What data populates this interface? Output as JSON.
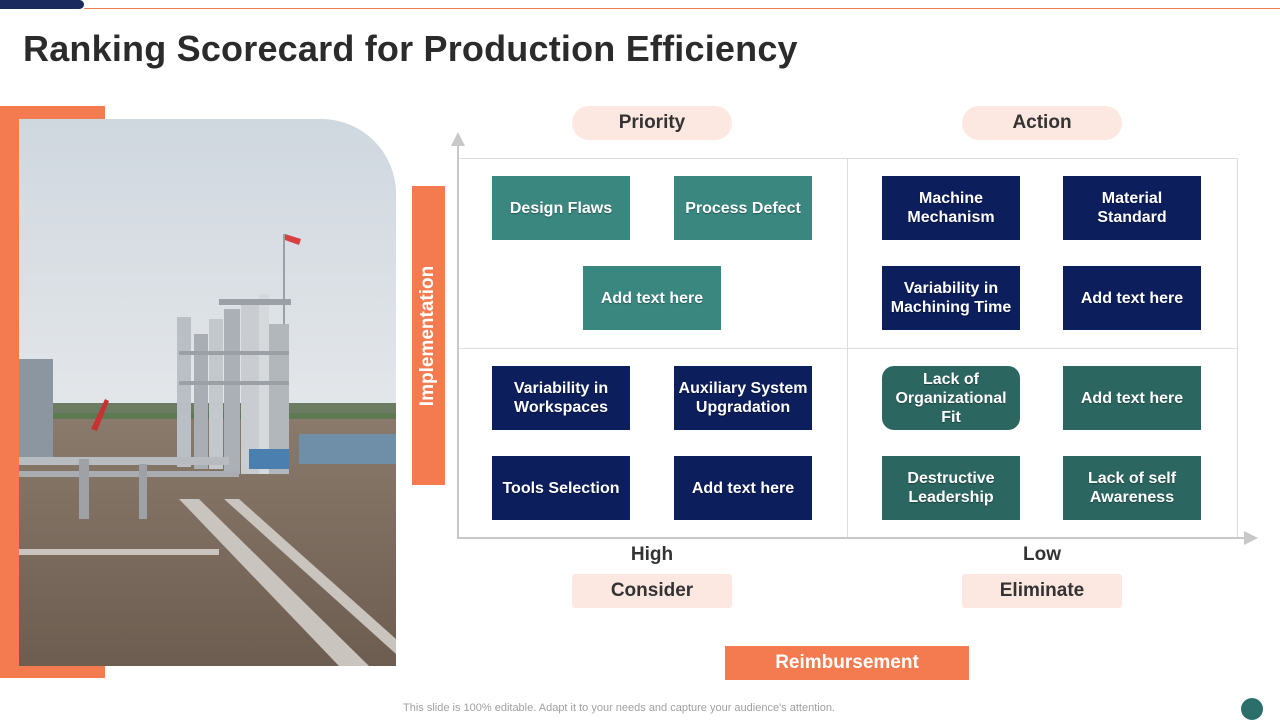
{
  "slide": {
    "title": "Ranking Scorecard for Production Efficiency",
    "footer": "This slide is 100% editable. Adapt it to your needs and capture your audience's attention."
  },
  "matrix": {
    "quadrant_labels": {
      "top_left": "Priority",
      "top_right": "Action",
      "bottom_left": "Consider",
      "bottom_right": "Eliminate"
    },
    "y_axis_label": "Implementation",
    "x_axis_label": "Reimbursement",
    "x_ticks": {
      "left": "High",
      "right": "Low"
    },
    "boxes": [
      {
        "label": "Design Flaws",
        "style": "teal"
      },
      {
        "label": "Process Defect",
        "style": "teal"
      },
      {
        "label": "Add text here",
        "style": "teal"
      },
      {
        "label": "Machine Mechanism",
        "style": "navy"
      },
      {
        "label": "Material Standard",
        "style": "navy"
      },
      {
        "label": "Variability in Machining Time",
        "style": "navy"
      },
      {
        "label": "Add text here",
        "style": "navy"
      },
      {
        "label": "Variability in Workspaces",
        "style": "navy"
      },
      {
        "label": "Auxiliary System Upgradation",
        "style": "navy"
      },
      {
        "label": "Tools Selection",
        "style": "navy"
      },
      {
        "label": "Add text here",
        "style": "navy"
      },
      {
        "label": "Lack of Organizational Fit",
        "style": "dark-teal-rounded"
      },
      {
        "label": "Add text here",
        "style": "dark-teal"
      },
      {
        "label": "Destructive Leadership",
        "style": "dark-teal"
      },
      {
        "label": "Lack of self Awareness",
        "style": "dark-teal"
      }
    ]
  },
  "colors": {
    "accent_orange": "#f47a4f",
    "teal": "#3a8780",
    "navy": "#0c1e5c",
    "dark_teal": "#2c6660",
    "pill_background": "#fde8e1"
  },
  "image": {
    "subject": "industrial-plant-photo"
  }
}
